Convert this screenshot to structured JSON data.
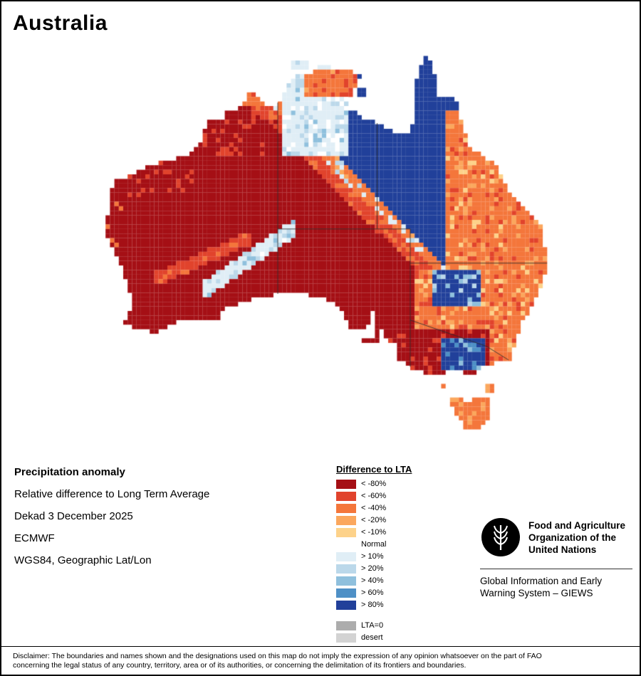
{
  "page": {
    "map_title": "Australia"
  },
  "info": {
    "product": "Precipitation anomaly",
    "description": "Relative difference to Long Term Average",
    "period": "Dekad 3 December 2025",
    "source": "ECMWF",
    "projection": "WGS84, Geographic Lat/Lon"
  },
  "legend": {
    "title": "Difference to LTA",
    "items": [
      {
        "label": "< -80%",
        "color": "#A50F15"
      },
      {
        "label": "< -60%",
        "color": "#E1432C"
      },
      {
        "label": "< -40%",
        "color": "#F4763B"
      },
      {
        "label": "< -20%",
        "color": "#FBA75D"
      },
      {
        "label": "< -10%",
        "color": "#FDD28A"
      },
      {
        "label": "Normal",
        "color": "#FFFFFF"
      },
      {
        "label": "> 10%",
        "color": "#E0EEF6"
      },
      {
        "label": "> 20%",
        "color": "#BBD8EA"
      },
      {
        "label": "> 40%",
        "color": "#8FC0DD"
      },
      {
        "label": "> 60%",
        "color": "#4E90C6"
      },
      {
        "label": "> 80%",
        "color": "#21409A"
      },
      {
        "label": "LTA=0",
        "color": "#ACACAC"
      },
      {
        "label": "desert",
        "color": "#D3D3D3"
      }
    ]
  },
  "org": {
    "name_lines": [
      "Food and Agriculture",
      "Organization of the",
      "United Nations"
    ],
    "system_lines": [
      "Global Information and Early",
      "Warning System – GIEWS"
    ]
  },
  "disclaimer": {
    "line1": "Disclaimer: The boundaries and names shown and the designations used on this map do not imply the expression of any opinion whatsoever on the part of FAO",
    "line2": "concerning the legal status of any country, territory, area or of its authorities, or concerning the delimitation of its frontiers and boundaries."
  }
}
